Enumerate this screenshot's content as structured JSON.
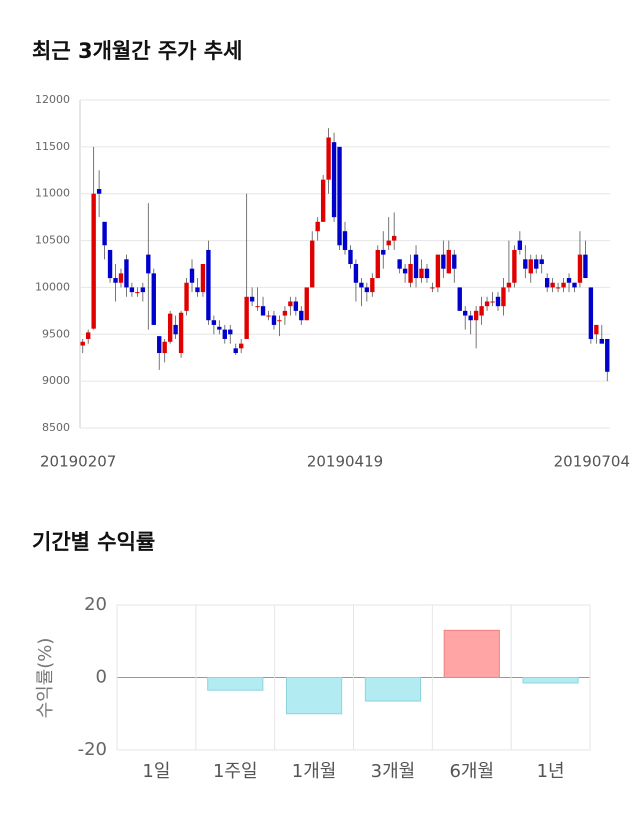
{
  "chart_data": [
    {
      "type": "candlestick",
      "title": "최근 3개월간 주가 추세",
      "categories": [
        "20190207",
        null,
        null,
        null,
        null,
        null,
        null,
        null,
        null,
        null,
        null,
        null,
        null,
        null,
        null,
        null,
        null,
        null,
        null,
        null,
        null,
        null,
        null,
        null,
        null,
        null,
        null,
        null,
        null,
        null,
        null,
        null,
        null,
        null,
        null,
        null,
        null,
        null,
        null,
        null,
        null,
        null,
        null,
        null,
        null,
        null,
        null,
        null,
        "20190419",
        null,
        null,
        null,
        null,
        null,
        null,
        null,
        null,
        null,
        null,
        null,
        null,
        null,
        null,
        null,
        null,
        null,
        null,
        null,
        null,
        null,
        null,
        null,
        null,
        null,
        null,
        null,
        null,
        null,
        null,
        null,
        null,
        null,
        null,
        null,
        null,
        null,
        null,
        null,
        null,
        null,
        null,
        null,
        null,
        null,
        null,
        null,
        "20190704"
      ],
      "open": [
        9380,
        9450,
        9560,
        11050,
        10700,
        10400,
        10100,
        10050,
        10300,
        10000,
        9950,
        10000,
        10350,
        10150,
        9480,
        9300,
        9420,
        9600,
        9300,
        9750,
        10200,
        10000,
        9950,
        10400,
        9650,
        9580,
        9550,
        9550,
        9350,
        9350,
        9450,
        9900,
        9800,
        9800,
        9700,
        9700,
        9650,
        9700,
        9800,
        9850,
        9750,
        9650,
        10000,
        10600,
        10700,
        11150,
        11550,
        11500,
        10600,
        10400,
        10250,
        10050,
        10000,
        9950,
        10100,
        10400,
        10450,
        10500,
        10300,
        10200,
        10050,
        10350,
        10100,
        10200,
        10000,
        10000,
        10350,
        10150,
        10350,
        10000,
        9750,
        9700,
        9650,
        9700,
        9800,
        9850,
        9900,
        9800,
        10000,
        10050,
        10500,
        10300,
        10150,
        10300,
        10300,
        10100,
        10000,
        10000,
        10000,
        10100,
        10050,
        10050,
        10350,
        10000,
        9500,
        9450,
        9450
      ],
      "high": [
        9450,
        9550,
        11500,
        11250,
        10700,
        10400,
        10250,
        10200,
        10350,
        10050,
        10000,
        10050,
        10900,
        10200,
        9480,
        9450,
        9750,
        9700,
        9750,
        10100,
        10300,
        10100,
        10250,
        10500,
        9700,
        9650,
        9600,
        9600,
        9400,
        9450,
        11000,
        10000,
        10000,
        9900,
        9750,
        9750,
        9700,
        9800,
        9900,
        9900,
        9800,
        10000,
        10600,
        10750,
        11200,
        11700,
        11650,
        11500,
        10700,
        10450,
        10300,
        10100,
        10050,
        10150,
        10450,
        10600,
        10750,
        10800,
        10300,
        10250,
        10350,
        10450,
        10300,
        10250,
        10050,
        10350,
        10500,
        10500,
        10400,
        10000,
        9800,
        9750,
        9800,
        9900,
        9900,
        9950,
        9950,
        10100,
        10500,
        10450,
        10600,
        10450,
        10350,
        10350,
        10350,
        10150,
        10100,
        10050,
        10100,
        10150,
        10050,
        10600,
        10500,
        10000,
        9600,
        9600,
        9450
      ],
      "low": [
        9300,
        9400,
        9550,
        10750,
        10300,
        10050,
        9850,
        10000,
        9900,
        9900,
        9900,
        9850,
        9550,
        9600,
        9120,
        9200,
        9400,
        9450,
        9250,
        9700,
        9950,
        9900,
        9900,
        9600,
        9500,
        9500,
        9400,
        9400,
        9280,
        9300,
        9450,
        9800,
        9750,
        9700,
        9650,
        9550,
        9480,
        9600,
        9700,
        9700,
        9600,
        9650,
        10000,
        10500,
        10700,
        11000,
        10700,
        10400,
        10350,
        10200,
        9850,
        9800,
        9850,
        9900,
        10100,
        10200,
        10400,
        10400,
        10150,
        10050,
        10000,
        10000,
        10050,
        10050,
        9950,
        9950,
        10100,
        10150,
        10050,
        9750,
        9550,
        9500,
        9350,
        9600,
        9750,
        9800,
        9750,
        9700,
        9950,
        10000,
        10350,
        10100,
        10050,
        10150,
        10150,
        9950,
        9950,
        9950,
        9950,
        9950,
        9950,
        10000,
        10100,
        9400,
        9400,
        9400,
        9000
      ],
      "close": [
        9420,
        9520,
        11000,
        11000,
        10450,
        10100,
        10050,
        10150,
        10000,
        9950,
        9950,
        9950,
        10150,
        9600,
        9300,
        9420,
        9720,
        9500,
        9730,
        10050,
        10050,
        9950,
        10250,
        9650,
        9600,
        9550,
        9450,
        9500,
        9300,
        9400,
        9900,
        9850,
        9800,
        9700,
        9700,
        9600,
        9650,
        9750,
        9850,
        9750,
        9650,
        10000,
        10500,
        10700,
        11150,
        11600,
        10750,
        10450,
        10400,
        10250,
        10050,
        10000,
        9950,
        10100,
        10400,
        10350,
        10500,
        10550,
        10200,
        10150,
        10250,
        10100,
        10200,
        10100,
        10000,
        10350,
        10200,
        10400,
        10200,
        9750,
        9700,
        9650,
        9750,
        9800,
        9850,
        9850,
        9800,
        10000,
        10050,
        10400,
        10400,
        10200,
        10300,
        10200,
        10250,
        10000,
        10050,
        10000,
        10050,
        10050,
        10000,
        10350,
        10100,
        9450,
        9600,
        9400,
        9100
      ],
      "up_color": "#e00000",
      "down_color": "#0000cc",
      "ylim": [
        8500,
        12000
      ],
      "yticks": [
        8500,
        9000,
        9500,
        10000,
        10500,
        11000,
        11500,
        12000
      ],
      "grid": true
    },
    {
      "type": "bar",
      "title": "기간별 수익률",
      "y_label": "수익률(%)",
      "categories": [
        "1일",
        "1주일",
        "1개월",
        "3개월",
        "6개월",
        "1년"
      ],
      "values": [
        0,
        -3.5,
        -10,
        -6.5,
        13,
        -1.5
      ],
      "positive_color": "#ffa5a5",
      "negative_color": "#b2ebf2",
      "ylim": [
        -20,
        20
      ],
      "yticks": [
        -20,
        0,
        20
      ],
      "grid": true
    }
  ]
}
